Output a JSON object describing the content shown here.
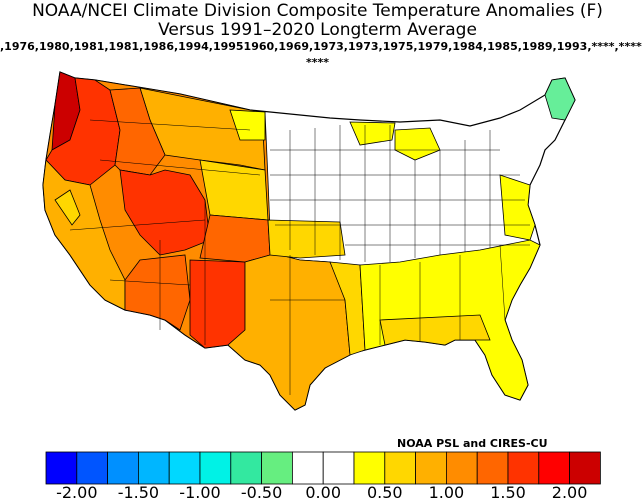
{
  "title": {
    "line1": "NOAA/NCEI Climate Division Composite Temperature Anomalies (F)",
    "line2": "Versus 1991–2020 Longterm Average",
    "years_line": ",1976,1980,1981,1981,1986,1994,19951960,1969,1973,1973,1975,1979,1984,1985,1989,1993,****,****",
    "years_line2": "****"
  },
  "credit": "NOAA PSL and CIRES-CU",
  "legend": {
    "colors": [
      "#0000ff",
      "#0055ff",
      "#0090ff",
      "#00b6ff",
      "#00d8ff",
      "#00f2e6",
      "#33e8a0",
      "#66ee80",
      "#ffffff",
      "#ffffff",
      "#ffff00",
      "#ffd700",
      "#ffb000",
      "#ff8c00",
      "#ff6600",
      "#ff3300",
      "#ff0000",
      "#cc0000"
    ],
    "labels": [
      "-2.00",
      "-1.50",
      "-1.00",
      "-0.50",
      "0.00",
      "0.50",
      "1.00",
      "1.50",
      "2.00"
    ]
  },
  "regions": [
    {
      "name": "Washington coast",
      "anomaly": 2.0
    },
    {
      "name": "Oregon",
      "anomaly": 1.75
    },
    {
      "name": "Idaho",
      "anomaly": 1.5
    },
    {
      "name": "Montana",
      "anomaly": 1.0
    },
    {
      "name": "California",
      "anomaly": 1.0
    },
    {
      "name": "Nevada",
      "anomaly": 1.5
    },
    {
      "name": "Utah",
      "anomaly": 1.75
    },
    {
      "name": "Arizona",
      "anomaly": 1.25
    },
    {
      "name": "New Mexico",
      "anomaly": 1.75
    },
    {
      "name": "Colorado",
      "anomaly": 1.25
    },
    {
      "name": "Wyoming",
      "anomaly": 1.0
    },
    {
      "name": "Texas",
      "anomaly": 0.75
    },
    {
      "name": "Northern Plains",
      "anomaly": 0.0
    },
    {
      "name": "Midwest",
      "anomaly": 0.0
    },
    {
      "name": "Southeast",
      "anomaly": 0.5
    },
    {
      "name": "Northeast",
      "anomaly": 0.0
    },
    {
      "name": "Maine",
      "anomaly": -0.5
    }
  ]
}
